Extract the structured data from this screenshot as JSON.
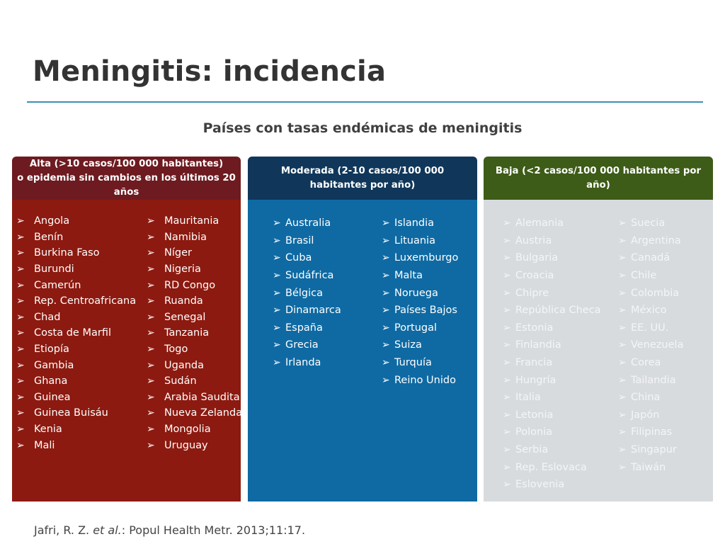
{
  "title": "Meningitis: incidencia",
  "subtitle": "Países con tasas endémicas de meningitis",
  "bullet_glyph": "➢",
  "colors": {
    "title_rule": "#3b8fb3",
    "alta_header": "#6d1b20",
    "alta_body": "#8c1a10",
    "moderada_header": "#10375a",
    "moderada_body": "#0f6aa3",
    "baja_header": "#3d5c17",
    "baja_body": "#d7dbde"
  },
  "columns": {
    "alta": {
      "header_line1": "Alta (>10 casos/100 000 habitantes)",
      "header_line2": "o epidemia sin cambios en los últimos 20",
      "header_line3": "años",
      "col1": [
        "Angola",
        "Benín",
        "Burkina Faso",
        "Burundi",
        "Camerún",
        "Rep. Centroafricana",
        "Chad",
        "Costa de Marfil",
        "Etiopía",
        "Gambia",
        "Ghana",
        "Guinea",
        "Guinea Buisáu",
        "Kenia",
        "Mali"
      ],
      "col2": [
        "Mauritania",
        "Namibia",
        "Níger",
        "Nigeria",
        "RD Congo",
        "Ruanda",
        "Senegal",
        "Tanzania",
        "Togo",
        "Uganda",
        "Sudán",
        "Arabia Saudita",
        "Nueva Zelanda",
        "Mongolia",
        "Uruguay"
      ]
    },
    "moderada": {
      "header_line1": "Moderada (2-10 casos/100 000",
      "header_line2": "habitantes por año)",
      "col1": [
        "Australia",
        "Brasil",
        "Cuba",
        "Sudáfrica",
        "Bélgica",
        "Dinamarca",
        "España",
        "Grecia",
        "Irlanda"
      ],
      "col2": [
        "Islandia",
        "Lituania",
        "Luxemburgo",
        "Malta",
        "Noruega",
        "Países Bajos",
        "Portugal",
        "Suiza",
        "Turquía",
        "Reino Unido"
      ]
    },
    "baja": {
      "header_line1": "Baja (<2 casos/100 000 habitantes por año)",
      "col1": [
        "Alemania",
        "Austria",
        "Bulgaria",
        "Croacia",
        "Chipre",
        "República Checa",
        "Estonia",
        "Finlandia",
        "Francia",
        "Hungría",
        "Italia",
        "Letonia",
        "Polonia",
        "Serbia",
        "Rep. Eslovaca",
        "Eslovenia"
      ],
      "col2": [
        "Suecia",
        "Argentina",
        "Canadá",
        "Chile",
        "Colombia",
        "México",
        "EE. UU.",
        "Venezuela",
        "Corea",
        "Tailandia",
        "China",
        "Japón",
        "Filipinas",
        "Singapur",
        "Taiwán"
      ]
    }
  },
  "citation": {
    "authors": "Jafri, R. Z. ",
    "etal": "et al.",
    "rest": ": Popul Health Metr. 2013;11:17."
  }
}
